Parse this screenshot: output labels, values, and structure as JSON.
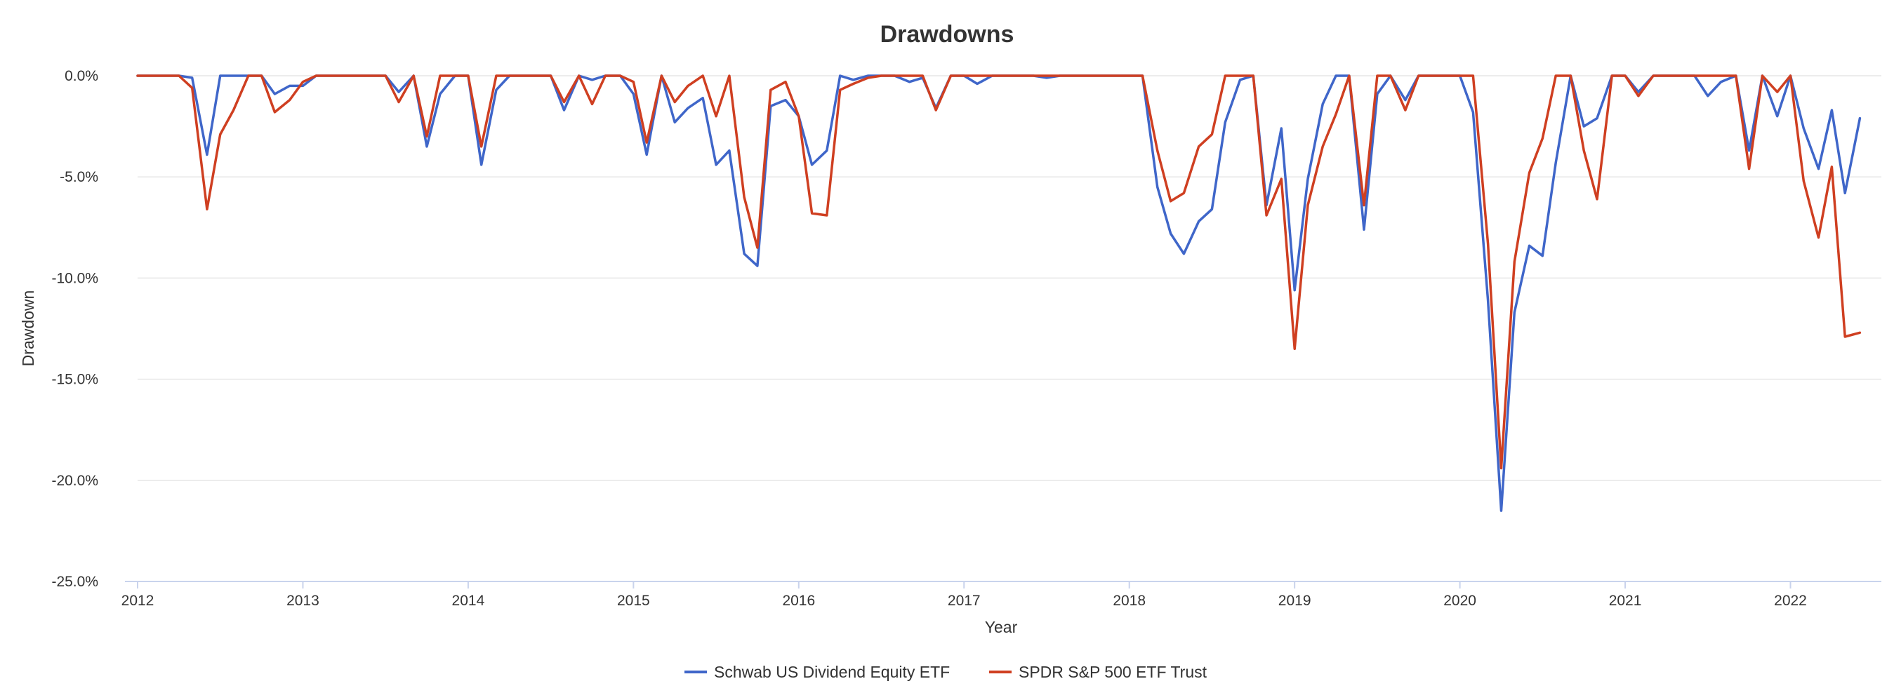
{
  "chart_data": {
    "type": "line",
    "title": "Drawdowns",
    "xlabel": "Year",
    "ylabel": "Drawdown",
    "ylim": [
      -25,
      0
    ],
    "y_ticks": [
      0,
      -5,
      -10,
      -15,
      -20,
      -25
    ],
    "y_tick_labels": [
      "0.0%",
      "-5.0%",
      "-10.0%",
      "-15.0%",
      "-20.0%",
      "-25.0%"
    ],
    "xlim": [
      2012,
      2022.55
    ],
    "x_ticks": [
      2012,
      2013,
      2014,
      2015,
      2016,
      2017,
      2018,
      2019,
      2020,
      2021,
      2022
    ],
    "x_tick_labels": [
      "2012",
      "2013",
      "2014",
      "2015",
      "2016",
      "2017",
      "2018",
      "2019",
      "2020",
      "2021",
      "2022"
    ],
    "grid": true,
    "legend": "bottom-center",
    "colors": {
      "series_1": "#3f66c9",
      "series_2": "#cf3f21",
      "grid": "#e6e6e6",
      "axis": "#c9d3ec",
      "text": "#333333"
    },
    "series": [
      {
        "name": "Schwab US Dividend Equity ETF",
        "color": "#3f66c9",
        "points": [
          [
            2012.0,
            0
          ],
          [
            2012.25,
            0
          ],
          [
            2012.33,
            -0.1
          ],
          [
            2012.42,
            -3.9
          ],
          [
            2012.5,
            0
          ],
          [
            2012.67,
            0
          ],
          [
            2012.75,
            0
          ],
          [
            2012.83,
            -0.9
          ],
          [
            2012.92,
            -0.5
          ],
          [
            2013.0,
            -0.5
          ],
          [
            2013.08,
            0
          ],
          [
            2013.5,
            0
          ],
          [
            2013.58,
            -0.8
          ],
          [
            2013.67,
            0
          ],
          [
            2013.75,
            -3.5
          ],
          [
            2013.83,
            -0.9
          ],
          [
            2013.92,
            0
          ],
          [
            2014.0,
            0
          ],
          [
            2014.08,
            -4.4
          ],
          [
            2014.17,
            -0.7
          ],
          [
            2014.25,
            0
          ],
          [
            2014.5,
            0
          ],
          [
            2014.58,
            -1.7
          ],
          [
            2014.67,
            0
          ],
          [
            2014.75,
            -0.2
          ],
          [
            2014.83,
            0
          ],
          [
            2014.92,
            0
          ],
          [
            2015.0,
            -0.9
          ],
          [
            2015.08,
            -3.9
          ],
          [
            2015.17,
            0
          ],
          [
            2015.25,
            -2.3
          ],
          [
            2015.33,
            -1.6
          ],
          [
            2015.42,
            -1.1
          ],
          [
            2015.5,
            -4.4
          ],
          [
            2015.58,
            -3.7
          ],
          [
            2015.67,
            -8.8
          ],
          [
            2015.75,
            -9.4
          ],
          [
            2015.83,
            -1.5
          ],
          [
            2015.92,
            -1.2
          ],
          [
            2016.0,
            -2.0
          ],
          [
            2016.08,
            -4.4
          ],
          [
            2016.17,
            -3.7
          ],
          [
            2016.25,
            0
          ],
          [
            2016.33,
            -0.2
          ],
          [
            2016.42,
            0
          ],
          [
            2016.58,
            0
          ],
          [
            2016.67,
            -0.3
          ],
          [
            2016.75,
            -0.1
          ],
          [
            2016.83,
            -1.6
          ],
          [
            2016.92,
            0
          ],
          [
            2017.0,
            0
          ],
          [
            2017.08,
            -0.4
          ],
          [
            2017.17,
            0
          ],
          [
            2017.42,
            0
          ],
          [
            2017.5,
            -0.1
          ],
          [
            2017.58,
            0
          ],
          [
            2018.0,
            0
          ],
          [
            2018.08,
            0
          ],
          [
            2018.17,
            -5.5
          ],
          [
            2018.25,
            -7.8
          ],
          [
            2018.33,
            -8.8
          ],
          [
            2018.42,
            -7.2
          ],
          [
            2018.5,
            -6.6
          ],
          [
            2018.58,
            -2.3
          ],
          [
            2018.67,
            -0.2
          ],
          [
            2018.75,
            0
          ],
          [
            2018.83,
            -6.4
          ],
          [
            2018.92,
            -2.6
          ],
          [
            2019.0,
            -10.6
          ],
          [
            2019.08,
            -5.1
          ],
          [
            2019.17,
            -1.4
          ],
          [
            2019.25,
            0
          ],
          [
            2019.33,
            0
          ],
          [
            2019.42,
            -7.6
          ],
          [
            2019.5,
            -0.9
          ],
          [
            2019.58,
            0
          ],
          [
            2019.67,
            -1.2
          ],
          [
            2019.75,
            0
          ],
          [
            2019.92,
            0
          ],
          [
            2020.0,
            0
          ],
          [
            2020.08,
            -1.8
          ],
          [
            2020.17,
            -11.1
          ],
          [
            2020.25,
            -21.5
          ],
          [
            2020.33,
            -11.7
          ],
          [
            2020.42,
            -8.4
          ],
          [
            2020.5,
            -8.9
          ],
          [
            2020.58,
            -4.3
          ],
          [
            2020.67,
            0
          ],
          [
            2020.75,
            -2.5
          ],
          [
            2020.83,
            -2.1
          ],
          [
            2020.92,
            0
          ],
          [
            2021.0,
            0
          ],
          [
            2021.08,
            -0.8
          ],
          [
            2021.17,
            0
          ],
          [
            2021.42,
            0
          ],
          [
            2021.5,
            -1.0
          ],
          [
            2021.58,
            -0.3
          ],
          [
            2021.67,
            0
          ],
          [
            2021.75,
            -3.7
          ],
          [
            2021.83,
            0
          ],
          [
            2021.92,
            -2.0
          ],
          [
            2022.0,
            0
          ],
          [
            2022.08,
            -2.6
          ],
          [
            2022.17,
            -4.6
          ],
          [
            2022.25,
            -1.7
          ],
          [
            2022.33,
            -5.8
          ],
          [
            2022.42,
            -2.1
          ]
        ]
      },
      {
        "name": "SPDR S&P 500 ETF Trust",
        "color": "#cf3f21",
        "points": [
          [
            2012.0,
            0
          ],
          [
            2012.25,
            0
          ],
          [
            2012.33,
            -0.6
          ],
          [
            2012.42,
            -6.6
          ],
          [
            2012.5,
            -2.9
          ],
          [
            2012.58,
            -1.7
          ],
          [
            2012.67,
            0
          ],
          [
            2012.75,
            0
          ],
          [
            2012.83,
            -1.8
          ],
          [
            2012.92,
            -1.2
          ],
          [
            2013.0,
            -0.3
          ],
          [
            2013.08,
            0
          ],
          [
            2013.5,
            0
          ],
          [
            2013.58,
            -1.3
          ],
          [
            2013.67,
            0
          ],
          [
            2013.75,
            -3.0
          ],
          [
            2013.83,
            0
          ],
          [
            2014.0,
            0
          ],
          [
            2014.08,
            -3.5
          ],
          [
            2014.17,
            0
          ],
          [
            2014.5,
            0
          ],
          [
            2014.58,
            -1.3
          ],
          [
            2014.67,
            0
          ],
          [
            2014.75,
            -1.4
          ],
          [
            2014.83,
            0
          ],
          [
            2014.92,
            0
          ],
          [
            2015.0,
            -0.3
          ],
          [
            2015.08,
            -3.3
          ],
          [
            2015.17,
            0
          ],
          [
            2015.25,
            -1.3
          ],
          [
            2015.33,
            -0.5
          ],
          [
            2015.42,
            0
          ],
          [
            2015.5,
            -2.0
          ],
          [
            2015.58,
            0
          ],
          [
            2015.67,
            -6.0
          ],
          [
            2015.75,
            -8.5
          ],
          [
            2015.83,
            -0.7
          ],
          [
            2015.92,
            -0.3
          ],
          [
            2016.0,
            -2.0
          ],
          [
            2016.08,
            -6.8
          ],
          [
            2016.17,
            -6.9
          ],
          [
            2016.25,
            -0.7
          ],
          [
            2016.33,
            -0.4
          ],
          [
            2016.42,
            -0.1
          ],
          [
            2016.5,
            0
          ],
          [
            2016.75,
            0
          ],
          [
            2016.83,
            -1.7
          ],
          [
            2016.92,
            0
          ],
          [
            2017.0,
            0
          ],
          [
            2018.0,
            0
          ],
          [
            2018.08,
            0
          ],
          [
            2018.17,
            -3.7
          ],
          [
            2018.25,
            -6.2
          ],
          [
            2018.33,
            -5.8
          ],
          [
            2018.42,
            -3.5
          ],
          [
            2018.5,
            -2.9
          ],
          [
            2018.58,
            0
          ],
          [
            2018.75,
            0
          ],
          [
            2018.83,
            -6.9
          ],
          [
            2018.92,
            -5.1
          ],
          [
            2019.0,
            -13.5
          ],
          [
            2019.08,
            -6.4
          ],
          [
            2019.17,
            -3.5
          ],
          [
            2019.25,
            -1.9
          ],
          [
            2019.33,
            0
          ],
          [
            2019.42,
            -6.4
          ],
          [
            2019.5,
            0
          ],
          [
            2019.58,
            0
          ],
          [
            2019.67,
            -1.7
          ],
          [
            2019.75,
            0
          ],
          [
            2019.92,
            0
          ],
          [
            2020.0,
            0
          ],
          [
            2020.08,
            0
          ],
          [
            2020.17,
            -8.3
          ],
          [
            2020.25,
            -19.4
          ],
          [
            2020.33,
            -9.2
          ],
          [
            2020.42,
            -4.8
          ],
          [
            2020.5,
            -3.1
          ],
          [
            2020.58,
            0
          ],
          [
            2020.67,
            0
          ],
          [
            2020.75,
            -3.7
          ],
          [
            2020.83,
            -6.1
          ],
          [
            2020.92,
            0
          ],
          [
            2021.0,
            0
          ],
          [
            2021.08,
            -1.0
          ],
          [
            2021.17,
            0
          ],
          [
            2021.67,
            0
          ],
          [
            2021.75,
            -4.6
          ],
          [
            2021.83,
            0
          ],
          [
            2021.92,
            -0.8
          ],
          [
            2022.0,
            0
          ],
          [
            2022.08,
            -5.2
          ],
          [
            2022.17,
            -8.0
          ],
          [
            2022.25,
            -4.5
          ],
          [
            2022.33,
            -12.9
          ],
          [
            2022.42,
            -12.7
          ]
        ]
      }
    ]
  }
}
